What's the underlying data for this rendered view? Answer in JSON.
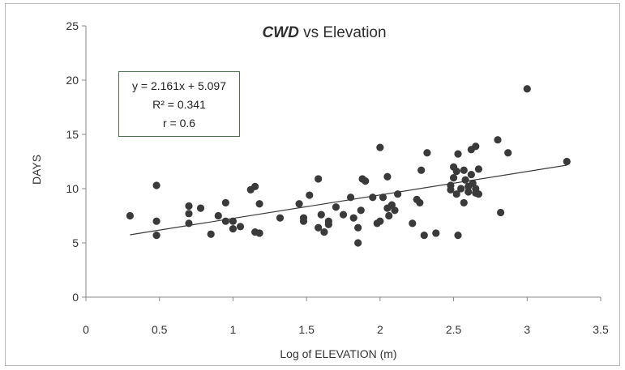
{
  "chart_data": {
    "type": "scatter",
    "title_italic": "CWD",
    "title_rest": " vs Elevation",
    "xlabel": "Log of ELEVATION (m)",
    "ylabel": "DAYS",
    "xlim": [
      0,
      3.5
    ],
    "ylim": [
      0,
      25
    ],
    "x_ticks": [
      "0",
      "0.5",
      "1",
      "1.5",
      "2",
      "2.5",
      "3",
      "3.5"
    ],
    "y_ticks": [
      "0",
      "5",
      "10",
      "15",
      "20",
      "25"
    ],
    "grid": false,
    "trendline": {
      "slope": 2.161,
      "intercept": 5.097,
      "x_range": [
        0.3,
        3.27
      ]
    },
    "annotation": {
      "equation": "y = 2.161x + 5.097",
      "r2": "R² = 0.341",
      "r": "r = 0.6"
    },
    "points": [
      [
        0.3,
        7.5
      ],
      [
        0.48,
        10.3
      ],
      [
        0.48,
        7.0
      ],
      [
        0.48,
        5.7
      ],
      [
        0.7,
        8.4
      ],
      [
        0.7,
        7.7
      ],
      [
        0.7,
        6.8
      ],
      [
        0.78,
        8.2
      ],
      [
        0.85,
        5.8
      ],
      [
        0.9,
        7.5
      ],
      [
        0.95,
        8.7
      ],
      [
        0.95,
        7.0
      ],
      [
        1.0,
        7.0
      ],
      [
        1.0,
        6.3
      ],
      [
        1.05,
        6.5
      ],
      [
        1.12,
        9.9
      ],
      [
        1.15,
        10.2
      ],
      [
        1.15,
        6.0
      ],
      [
        1.18,
        8.6
      ],
      [
        1.18,
        5.9
      ],
      [
        1.32,
        7.3
      ],
      [
        1.45,
        8.6
      ],
      [
        1.48,
        7.3
      ],
      [
        1.48,
        7.0
      ],
      [
        1.52,
        9.4
      ],
      [
        1.58,
        10.9
      ],
      [
        1.58,
        6.4
      ],
      [
        1.6,
        7.6
      ],
      [
        1.62,
        6.0
      ],
      [
        1.65,
        7.0
      ],
      [
        1.65,
        6.7
      ],
      [
        1.7,
        8.3
      ],
      [
        1.75,
        7.6
      ],
      [
        1.8,
        9.2
      ],
      [
        1.82,
        7.3
      ],
      [
        1.85,
        6.4
      ],
      [
        1.85,
        5.0
      ],
      [
        1.87,
        8.0
      ],
      [
        1.88,
        10.9
      ],
      [
        1.9,
        10.7
      ],
      [
        1.95,
        9.2
      ],
      [
        1.98,
        6.8
      ],
      [
        2.0,
        13.8
      ],
      [
        2.0,
        7.0
      ],
      [
        2.02,
        9.2
      ],
      [
        2.05,
        11.1
      ],
      [
        2.05,
        8.2
      ],
      [
        2.06,
        7.5
      ],
      [
        2.08,
        8.5
      ],
      [
        2.1,
        8.0
      ],
      [
        2.12,
        9.5
      ],
      [
        2.22,
        6.8
      ],
      [
        2.25,
        9.0
      ],
      [
        2.27,
        8.7
      ],
      [
        2.28,
        11.7
      ],
      [
        2.3,
        5.7
      ],
      [
        2.32,
        13.3
      ],
      [
        2.38,
        5.9
      ],
      [
        2.48,
        10.3
      ],
      [
        2.48,
        9.9
      ],
      [
        2.5,
        12.0
      ],
      [
        2.5,
        11.0
      ],
      [
        2.52,
        11.6
      ],
      [
        2.52,
        9.5
      ],
      [
        2.53,
        13.2
      ],
      [
        2.53,
        5.7
      ],
      [
        2.55,
        10.0
      ],
      [
        2.57,
        11.7
      ],
      [
        2.57,
        8.7
      ],
      [
        2.58,
        10.8
      ],
      [
        2.6,
        10.2
      ],
      [
        2.6,
        9.7
      ],
      [
        2.62,
        13.6
      ],
      [
        2.62,
        11.3
      ],
      [
        2.63,
        10.5
      ],
      [
        2.65,
        13.9
      ],
      [
        2.65,
        9.6
      ],
      [
        2.65,
        10.0
      ],
      [
        2.67,
        11.8
      ],
      [
        2.67,
        9.5
      ],
      [
        2.8,
        14.5
      ],
      [
        2.82,
        7.8
      ],
      [
        2.87,
        13.3
      ],
      [
        3.0,
        19.2
      ],
      [
        3.27,
        12.5
      ]
    ]
  }
}
